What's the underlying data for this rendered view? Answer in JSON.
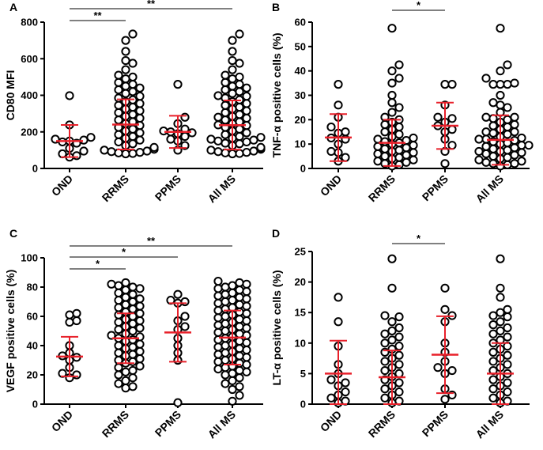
{
  "chart_data": [
    {
      "panel": "A",
      "type": "scatter",
      "ylabel": "CD80 MFI",
      "ylim": [
        0,
        800
      ],
      "yticks": [
        "0",
        "200",
        "400",
        "600",
        "800"
      ],
      "ytick_values": [
        0,
        200,
        400,
        600,
        800
      ],
      "categories": [
        "OND",
        "RRMS",
        "PPMS",
        "All MS"
      ],
      "summary": [
        {
          "mean": 150,
          "lo": 62,
          "hi": 238
        },
        {
          "mean": 240,
          "lo": 104,
          "hi": 378
        },
        {
          "mean": 200,
          "lo": 112,
          "hi": 288
        },
        {
          "mean": 237,
          "lo": 103,
          "hi": 372
        }
      ],
      "significance": [
        {
          "from": 0,
          "to": 1,
          "label": "**"
        },
        {
          "from": 0,
          "to": 3,
          "label": "**"
        }
      ],
      "points": [
        [
          398,
          238,
          170,
          160,
          155,
          150,
          145,
          138,
          110,
          95,
          80,
          70,
          62
        ],
        [
          735,
          700,
          640,
          590,
          575,
          540,
          510,
          500,
          490,
          470,
          460,
          450,
          440,
          430,
          420,
          410,
          395,
          385,
          375,
          365,
          355,
          345,
          335,
          325,
          315,
          305,
          295,
          285,
          275,
          265,
          255,
          245,
          235,
          225,
          215,
          205,
          195,
          185,
          175,
          165,
          155,
          145,
          135,
          125,
          115,
          105,
          100,
          95,
          92,
          88,
          85,
          82,
          80
        ],
        [
          460,
          280,
          245,
          215,
          205,
          200,
          195,
          190,
          175,
          160,
          150,
          125,
          100
        ],
        [
          735,
          700,
          640,
          590,
          575,
          540,
          510,
          500,
          490,
          470,
          460,
          450,
          440,
          430,
          420,
          410,
          398,
          395,
          385,
          375,
          365,
          355,
          345,
          335,
          325,
          315,
          305,
          295,
          285,
          280,
          275,
          265,
          255,
          245,
          238,
          235,
          225,
          215,
          205,
          195,
          185,
          175,
          170,
          165,
          160,
          155,
          150,
          145,
          138,
          135,
          125,
          115,
          110,
          105,
          100,
          95,
          92,
          88,
          85,
          82,
          80
        ]
      ]
    },
    {
      "panel": "B",
      "type": "scatter",
      "ylabel": "TNF-α positive cells (%)",
      "ylim": [
        0,
        60
      ],
      "yticks": [
        "0",
        "10",
        "20",
        "30",
        "40",
        "50",
        "60"
      ],
      "ytick_values": [
        0,
        10,
        20,
        30,
        40,
        50,
        60
      ],
      "categories": [
        "OND",
        "RRMS",
        "PPMS",
        "All MS"
      ],
      "summary": [
        {
          "mean": 12.7,
          "lo": 3.0,
          "hi": 22.3
        },
        {
          "mean": 10.5,
          "lo": 1.0,
          "hi": 20.0
        },
        {
          "mean": 17.5,
          "lo": 8.0,
          "hi": 27.0
        },
        {
          "mean": 11.7,
          "lo": 1.5,
          "hi": 21.8
        }
      ],
      "significance": [
        {
          "from": 1,
          "to": 2,
          "label": "*"
        }
      ],
      "points": [
        [
          34.5,
          26.0,
          21.0,
          17.0,
          15.0,
          14.5,
          12.5,
          12.0,
          10.0,
          7.0,
          6.5,
          4.5,
          3.0
        ],
        [
          57.5,
          42.5,
          40.0,
          37.0,
          35.0,
          30.0,
          27.0,
          25.0,
          23.0,
          21.0,
          20.0,
          19.0,
          18.0,
          17.0,
          16.0,
          15.0,
          14.0,
          13.0,
          12.5,
          12.0,
          11.5,
          11.0,
          10.5,
          10.0,
          9.5,
          9.0,
          8.5,
          8.0,
          7.5,
          7.0,
          6.5,
          6.0,
          5.5,
          5.0,
          4.5,
          4.0,
          3.5,
          3.0,
          2.5,
          2.0,
          1.5,
          1.0
        ],
        [
          34.5,
          34.5,
          26.0,
          21.0,
          20.5,
          19.0,
          17.5,
          16.0,
          15.0,
          12.0,
          9.5,
          7.0,
          2.0
        ],
        [
          57.5,
          42.5,
          40.0,
          37.0,
          35.0,
          34.5,
          34.5,
          34.5,
          30.0,
          27.0,
          26.0,
          25.0,
          23.0,
          21.0,
          21.0,
          20.5,
          20.0,
          19.0,
          18.0,
          17.5,
          17.0,
          16.0,
          15.0,
          15.0,
          14.5,
          14.0,
          13.0,
          12.5,
          12.0,
          12.0,
          11.5,
          11.0,
          10.5,
          10.0,
          9.5,
          9.5,
          9.0,
          8.5,
          8.0,
          7.5,
          7.0,
          7.0,
          6.5,
          6.0,
          5.5,
          5.0,
          4.5,
          4.0,
          3.5,
          3.0,
          2.5,
          2.0,
          2.0,
          1.5,
          1.0
        ]
      ]
    },
    {
      "panel": "C",
      "type": "scatter",
      "ylabel": "VEGF positive cells (%)",
      "ylim": [
        0,
        100
      ],
      "yticks": [
        "0",
        "20",
        "40",
        "60",
        "80",
        "100"
      ],
      "ytick_values": [
        0,
        20,
        40,
        60,
        80,
        100
      ],
      "categories": [
        "OND",
        "RRMS",
        "PPMS",
        "All MS"
      ],
      "summary": [
        {
          "mean": 32.5,
          "lo": 19.0,
          "hi": 46.0
        },
        {
          "mean": 45.0,
          "lo": 28.0,
          "hi": 62.0
        },
        {
          "mean": 49.0,
          "lo": 29.0,
          "hi": 69.0
        },
        {
          "mean": 45.5,
          "lo": 27.0,
          "hi": 64.0
        }
      ],
      "significance": [
        {
          "from": 0,
          "to": 1,
          "label": "*"
        },
        {
          "from": 0,
          "to": 2,
          "label": "*"
        },
        {
          "from": 0,
          "to": 3,
          "label": "**"
        }
      ],
      "points": [
        [
          62,
          61,
          57,
          56,
          40,
          35,
          33,
          32,
          30,
          25,
          21,
          20,
          18
        ],
        [
          83,
          82,
          81,
          80,
          79,
          78,
          76,
          75,
          73,
          72,
          71,
          70,
          68,
          67,
          66,
          65,
          63,
          62,
          61,
          60,
          58,
          57,
          56,
          55,
          53,
          52,
          51,
          50,
          48,
          47,
          46,
          45,
          44,
          43,
          41,
          40,
          39,
          38,
          36,
          35,
          34,
          33,
          31,
          30,
          29,
          28,
          26,
          25,
          23,
          22,
          20,
          18,
          16,
          14,
          12,
          11
        ],
        [
          75,
          71,
          70,
          69,
          60,
          57,
          53,
          51,
          45,
          40,
          35,
          30,
          1
        ],
        [
          84,
          83,
          82,
          81,
          80,
          79,
          78,
          77,
          76,
          75,
          74,
          73,
          72,
          71,
          70,
          69,
          68,
          67,
          66,
          65,
          64,
          63,
          62,
          61,
          60,
          59,
          58,
          57,
          56,
          55,
          54,
          53,
          52,
          51,
          50,
          49,
          48,
          47,
          46,
          45,
          44,
          43,
          42,
          41,
          40,
          39,
          38,
          37,
          36,
          35,
          34,
          33,
          32,
          31,
          30,
          29,
          28,
          27,
          26,
          25,
          24,
          23,
          22,
          21,
          20,
          18,
          16,
          14,
          12,
          10,
          6,
          2
        ]
      ]
    },
    {
      "panel": "D",
      "type": "scatter",
      "ylabel": "LT-α positive cells (%)",
      "ylim": [
        0,
        25
      ],
      "yticks": [
        "0",
        "5",
        "10",
        "15",
        "20",
        "25"
      ],
      "ytick_values": [
        0,
        5,
        10,
        15,
        20,
        25
      ],
      "categories": [
        "OND",
        "RRMS",
        "PPMS",
        "All MS"
      ],
      "summary": [
        {
          "mean": 5.0,
          "lo": 0.0,
          "hi": 10.4
        },
        {
          "mean": 4.4,
          "lo": 0.0,
          "hi": 8.8
        },
        {
          "mean": 8.1,
          "lo": 1.8,
          "hi": 14.4
        },
        {
          "mean": 5.0,
          "lo": 0.0,
          "hi": 10.0
        }
      ],
      "significance": [
        {
          "from": 1,
          "to": 2,
          "label": "*"
        }
      ],
      "points": [
        [
          17.5,
          13.5,
          9.5,
          6.5,
          5.0,
          4.0,
          3.5,
          3.0,
          2.0,
          1.5,
          1.0,
          0.5,
          0.2
        ],
        [
          23.8,
          19.0,
          14.5,
          14.3,
          13.5,
          12.5,
          12.0,
          11.5,
          11.0,
          10.5,
          10.0,
          9.5,
          9.0,
          8.5,
          8.0,
          7.5,
          7.0,
          6.5,
          6.0,
          5.5,
          5.0,
          4.5,
          4.0,
          3.5,
          3.0,
          2.5,
          2.0,
          1.5,
          1.0,
          0.5,
          0.2
        ],
        [
          19.0,
          15.5,
          14.5,
          13.5,
          10.0,
          8.5,
          7.0,
          6.0,
          5.5,
          5.0,
          2.5,
          1.5,
          0.8
        ],
        [
          23.8,
          19.0,
          17.5,
          15.5,
          15.0,
          14.5,
          14.3,
          13.5,
          13.0,
          12.5,
          12.0,
          11.5,
          11.0,
          10.5,
          10.0,
          9.5,
          9.0,
          8.5,
          8.0,
          7.5,
          7.0,
          6.5,
          6.0,
          5.5,
          5.0,
          4.5,
          4.0,
          3.5,
          3.0,
          2.5,
          2.0,
          1.5,
          1.0,
          0.5,
          0.2
        ]
      ]
    }
  ]
}
